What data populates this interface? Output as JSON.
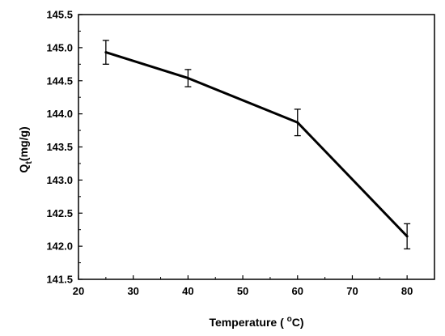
{
  "chart_data": {
    "type": "line",
    "title": "",
    "xlabel": "Temperature ( °C)",
    "ylabel": "Qt(mg/g)",
    "ylabel_parts": {
      "main": "Q",
      "sub": "t",
      "rest": "(mg/g)"
    },
    "xlabel_parts": {
      "before": "Temperature ( ",
      "sup": "o",
      "after": "C)"
    },
    "xlim": [
      20,
      85
    ],
    "ylim": [
      141.5,
      145.5
    ],
    "xticks": [
      20,
      30,
      40,
      50,
      60,
      70,
      80
    ],
    "yticks": [
      141.5,
      142.0,
      142.5,
      143.0,
      143.5,
      144.0,
      144.5,
      145.0,
      145.5
    ],
    "xtick_labels": [
      "20",
      "30",
      "40",
      "50",
      "60",
      "70",
      "80"
    ],
    "ytick_labels": [
      "141.5",
      "142.0",
      "142.5",
      "143.0",
      "143.5",
      "144.0",
      "144.5",
      "145.0",
      "145.5"
    ],
    "grid": false,
    "legend": "none",
    "series": [
      {
        "x": [
          25,
          40,
          60,
          80
        ],
        "y": [
          144.93,
          144.54,
          143.87,
          142.15
        ],
        "error": [
          0.18,
          0.13,
          0.2,
          0.19
        ],
        "color": "#000000"
      }
    ]
  }
}
